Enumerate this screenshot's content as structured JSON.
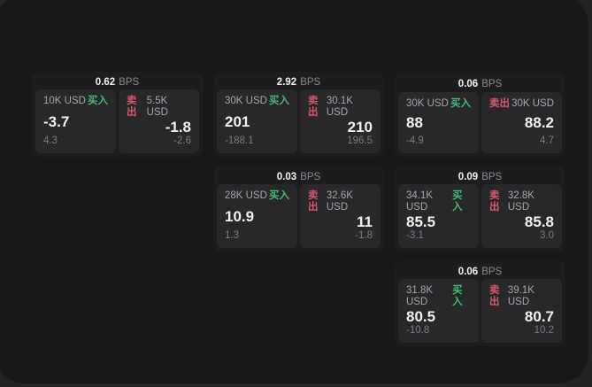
{
  "units": {
    "bps": "BPS"
  },
  "labels": {
    "buy": "买入",
    "sell": "卖出"
  },
  "colors": {
    "background": "#232323",
    "panel": "#181818",
    "card": "#1d1d1f",
    "tile": "#28282a",
    "buy_green": "#45bd6e",
    "sell_red": "#d9566b",
    "value_white": "#f2f2f3",
    "muted_gray": "#8b8b90"
  },
  "cards": [
    {
      "bps": "0.62",
      "buy": {
        "notional": "10K USD",
        "price": "-3.7",
        "delta": "4.3"
      },
      "sell": {
        "notional": "5.5K USD",
        "price": "-1.8",
        "delta": "-2.6"
      }
    },
    {
      "bps": "2.92",
      "buy": {
        "notional": "30K USD",
        "price": "201",
        "delta": "-188.1"
      },
      "sell": {
        "notional": "30.1K USD",
        "price": "210",
        "delta": "196.5"
      }
    },
    {
      "bps": "0.06",
      "buy": {
        "notional": "30K USD",
        "price": "88",
        "delta": "-4.9"
      },
      "sell": {
        "notional": "30K USD",
        "price": "88.2",
        "delta": "4.7"
      }
    },
    {
      "bps": "0.03",
      "buy": {
        "notional": "28K USD",
        "price": "10.9",
        "delta": "1.3"
      },
      "sell": {
        "notional": "32.6K USD",
        "price": "11",
        "delta": "-1.8"
      }
    },
    {
      "bps": "0.09",
      "buy": {
        "notional": "34.1K USD",
        "price": "85.5",
        "delta": "-3.1"
      },
      "sell": {
        "notional": "32.8K USD",
        "price": "85.8",
        "delta": "3.0"
      }
    },
    {
      "bps": "0.06",
      "buy": {
        "notional": "31.8K USD",
        "price": "80.5",
        "delta": "-10.8"
      },
      "sell": {
        "notional": "39.1K USD",
        "price": "80.7",
        "delta": "10.2"
      }
    }
  ]
}
